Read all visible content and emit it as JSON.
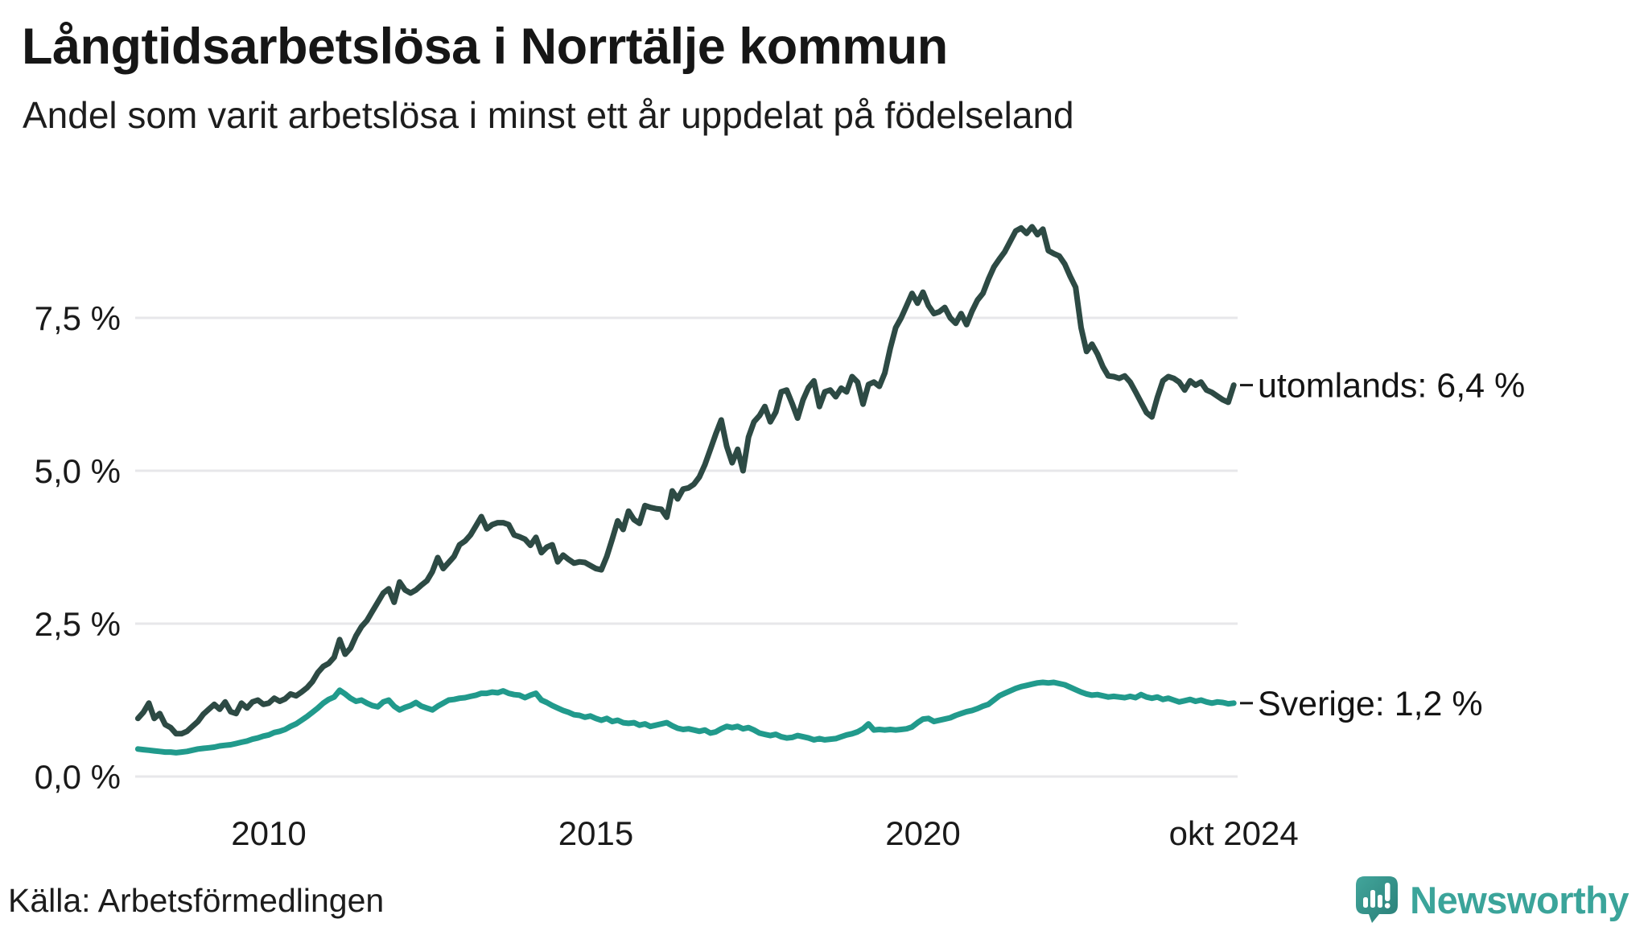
{
  "header": {
    "title": "Långtidsarbetslösa i Norrtälje kommun",
    "subtitle": "Andel som varit arbetslösa i minst ett år uppdelat på födelseland"
  },
  "footer": {
    "source": "Källa: Arbetsförmedlingen",
    "brand": "Newsworthy"
  },
  "colors": {
    "utomlands_line": "#2d4a44",
    "sverige_line": "#219a8c",
    "gridline": "#e7e7ea",
    "text": "#1a1a1a",
    "brand_teal": "#3ba49a"
  },
  "chart_data": {
    "type": "line",
    "unit": "%",
    "grid": "horizontal",
    "x_start_year": 2008.0,
    "x_step_months": 1,
    "x_end": 2024.75,
    "ylim": [
      0,
      9.5
    ],
    "y_ticks": [
      {
        "v": 0,
        "label": "0,0 %"
      },
      {
        "v": 2.5,
        "label": "2,5 %"
      },
      {
        "v": 5,
        "label": "5,0 %"
      },
      {
        "v": 7.5,
        "label": "7,5 %"
      }
    ],
    "x_ticks": [
      {
        "t": 2010,
        "label": "2010"
      },
      {
        "t": 2015,
        "label": "2015"
      },
      {
        "t": 2020,
        "label": "2020"
      },
      {
        "t": 2024.75,
        "label": "okt 2024"
      }
    ],
    "series": [
      {
        "name": "utomlands",
        "end_label": "utomlands: 6,4 %",
        "end_value": 6.4,
        "color": "#2d4a44",
        "values": [
          0.95,
          1.05,
          1.2,
          0.95,
          1.03,
          0.85,
          0.8,
          0.7,
          0.7,
          0.74,
          0.82,
          0.9,
          1.02,
          1.1,
          1.18,
          1.1,
          1.22,
          1.06,
          1.03,
          1.2,
          1.12,
          1.22,
          1.25,
          1.18,
          1.2,
          1.28,
          1.23,
          1.27,
          1.35,
          1.32,
          1.38,
          1.45,
          1.55,
          1.7,
          1.8,
          1.85,
          1.95,
          2.24,
          2.0,
          2.1,
          2.3,
          2.45,
          2.55,
          2.7,
          2.85,
          3.0,
          3.07,
          2.85,
          3.18,
          3.05,
          3.0,
          3.05,
          3.13,
          3.2,
          3.35,
          3.58,
          3.4,
          3.5,
          3.6,
          3.79,
          3.85,
          3.95,
          4.1,
          4.25,
          4.05,
          4.12,
          4.15,
          4.15,
          4.12,
          3.95,
          3.92,
          3.88,
          3.78,
          3.91,
          3.66,
          3.75,
          3.79,
          3.51,
          3.62,
          3.55,
          3.49,
          3.51,
          3.5,
          3.45,
          3.4,
          3.38,
          3.6,
          3.88,
          4.18,
          4.04,
          4.34,
          4.2,
          4.14,
          4.43,
          4.4,
          4.38,
          4.37,
          4.24,
          4.67,
          4.54,
          4.7,
          4.72,
          4.78,
          4.9,
          5.1,
          5.35,
          5.6,
          5.83,
          5.4,
          5.13,
          5.35,
          5.0,
          5.55,
          5.8,
          5.9,
          6.05,
          5.8,
          5.96,
          6.29,
          6.32,
          6.1,
          5.86,
          6.16,
          6.36,
          6.47,
          6.05,
          6.29,
          6.32,
          6.21,
          6.35,
          6.29,
          6.54,
          6.45,
          6.09,
          6.41,
          6.45,
          6.38,
          6.6,
          7.0,
          7.34,
          7.5,
          7.7,
          7.9,
          7.74,
          7.92,
          7.7,
          7.57,
          7.6,
          7.67,
          7.5,
          7.41,
          7.57,
          7.39,
          7.61,
          7.79,
          7.9,
          8.13,
          8.33,
          8.46,
          8.58,
          8.75,
          8.92,
          8.97,
          8.88,
          8.99,
          8.86,
          8.95,
          8.6,
          8.55,
          8.51,
          8.38,
          8.18,
          8.0,
          7.34,
          6.95,
          7.07,
          6.91,
          6.7,
          6.55,
          6.54,
          6.51,
          6.55,
          6.45,
          6.29,
          6.12,
          5.95,
          5.88,
          6.2,
          6.47,
          6.54,
          6.51,
          6.45,
          6.32,
          6.47,
          6.4,
          6.45,
          6.32,
          6.28,
          6.22,
          6.16,
          6.12,
          6.4
        ]
      },
      {
        "name": "Sverige",
        "end_label": "Sverige: 1,2 %",
        "end_value": 1.2,
        "color": "#219a8c",
        "values": [
          0.45,
          0.44,
          0.43,
          0.42,
          0.41,
          0.4,
          0.4,
          0.39,
          0.4,
          0.41,
          0.43,
          0.45,
          0.46,
          0.47,
          0.48,
          0.5,
          0.51,
          0.52,
          0.54,
          0.56,
          0.58,
          0.61,
          0.63,
          0.66,
          0.68,
          0.72,
          0.74,
          0.77,
          0.82,
          0.86,
          0.92,
          0.98,
          1.05,
          1.12,
          1.2,
          1.26,
          1.3,
          1.41,
          1.35,
          1.28,
          1.23,
          1.25,
          1.2,
          1.16,
          1.14,
          1.22,
          1.25,
          1.15,
          1.09,
          1.13,
          1.16,
          1.21,
          1.15,
          1.12,
          1.09,
          1.15,
          1.2,
          1.25,
          1.26,
          1.28,
          1.29,
          1.31,
          1.33,
          1.36,
          1.36,
          1.38,
          1.37,
          1.4,
          1.36,
          1.34,
          1.33,
          1.29,
          1.33,
          1.36,
          1.25,
          1.21,
          1.16,
          1.12,
          1.08,
          1.05,
          1.01,
          1.0,
          0.97,
          0.99,
          0.95,
          0.92,
          0.95,
          0.9,
          0.92,
          0.88,
          0.87,
          0.88,
          0.84,
          0.86,
          0.82,
          0.84,
          0.86,
          0.88,
          0.83,
          0.79,
          0.77,
          0.78,
          0.76,
          0.74,
          0.76,
          0.71,
          0.73,
          0.78,
          0.82,
          0.8,
          0.82,
          0.78,
          0.8,
          0.76,
          0.71,
          0.69,
          0.67,
          0.69,
          0.65,
          0.63,
          0.64,
          0.67,
          0.65,
          0.63,
          0.6,
          0.62,
          0.6,
          0.61,
          0.62,
          0.65,
          0.68,
          0.7,
          0.73,
          0.78,
          0.86,
          0.76,
          0.77,
          0.76,
          0.77,
          0.76,
          0.77,
          0.78,
          0.81,
          0.88,
          0.94,
          0.95,
          0.9,
          0.92,
          0.94,
          0.96,
          1.0,
          1.03,
          1.06,
          1.08,
          1.11,
          1.15,
          1.18,
          1.25,
          1.32,
          1.36,
          1.4,
          1.44,
          1.47,
          1.49,
          1.51,
          1.53,
          1.54,
          1.53,
          1.54,
          1.52,
          1.5,
          1.46,
          1.42,
          1.38,
          1.35,
          1.33,
          1.34,
          1.32,
          1.3,
          1.31,
          1.3,
          1.29,
          1.31,
          1.29,
          1.34,
          1.3,
          1.28,
          1.3,
          1.26,
          1.28,
          1.25,
          1.22,
          1.24,
          1.26,
          1.23,
          1.25,
          1.22,
          1.2,
          1.22,
          1.21,
          1.19,
          1.2
        ]
      }
    ]
  }
}
